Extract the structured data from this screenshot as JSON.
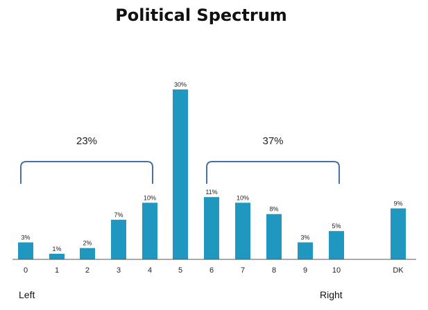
{
  "chart_data": {
    "type": "bar",
    "title": "Political Spectrum",
    "categories": [
      "0",
      "1",
      "2",
      "3",
      "4",
      "5",
      "6",
      "7",
      "8",
      "9",
      "10",
      "DK"
    ],
    "values": [
      3,
      1,
      2,
      7,
      10,
      30,
      11,
      10,
      8,
      3,
      5,
      9
    ],
    "data_labels": [
      "3%",
      "1%",
      "2%",
      "7%",
      "10%",
      "30%",
      "11%",
      "10%",
      "8%",
      "3%",
      "5%",
      "9%"
    ],
    "ylim": [
      0,
      30
    ],
    "grid": false,
    "bar_color": "#1f97bf",
    "groups": [
      {
        "label": "23%",
        "from": "0",
        "to": "4"
      },
      {
        "label": "37%",
        "from": "6",
        "to": "10"
      }
    ],
    "axis_end_labels": {
      "left": "Left",
      "right": "Right"
    }
  }
}
